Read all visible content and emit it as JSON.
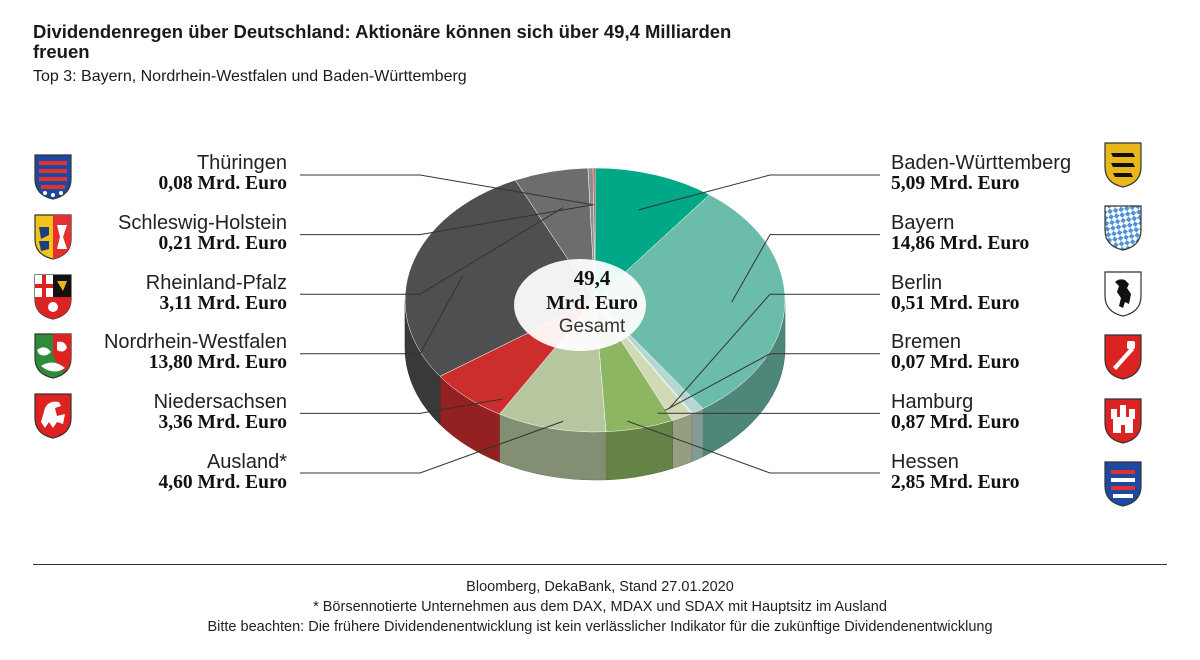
{
  "title": "Dividendenregen über Deutschland: Aktionäre können sich über 49,4 Milliarden freuen",
  "subtitle": "Top 3: Bayern, Nordrhein-Westfalen und Baden-Württemberg",
  "center": {
    "total": "49,4",
    "unit": "Mrd. Euro",
    "label": "Gesamt"
  },
  "labels_left": [
    {
      "name": "Thüringen",
      "value": "0,08 Mrd. Euro"
    },
    {
      "name": "Schleswig-Holstein",
      "value": "0,21 Mrd. Euro"
    },
    {
      "name": "Rheinland-Pfalz",
      "value": "3,11 Mrd. Euro"
    },
    {
      "name": "Nordrhein-Westfalen",
      "value": "13,80 Mrd. Euro"
    },
    {
      "name": "Niedersachsen",
      "value": "3,36 Mrd. Euro"
    },
    {
      "name": "Ausland*",
      "value": "4,60 Mrd. Euro"
    }
  ],
  "labels_right": [
    {
      "name": "Baden-Württemberg",
      "value": "5,09 Mrd. Euro"
    },
    {
      "name": "Bayern",
      "value": "14,86 Mrd. Euro"
    },
    {
      "name": "Berlin",
      "value": "0,51 Mrd. Euro"
    },
    {
      "name": "Bremen",
      "value": "0,07 Mrd. Euro"
    },
    {
      "name": "Hamburg",
      "value": "0,87 Mrd. Euro"
    },
    {
      "name": "Hessen",
      "value": "2,85 Mrd. Euro"
    }
  ],
  "chart_data": {
    "type": "pie",
    "title": "Dividendenregen über Deutschland: Aktionäre können sich über 49,4 Milliarden freuen",
    "unit": "Mrd. Euro",
    "total": 49.4,
    "slices": [
      {
        "label": "Baden-Württemberg",
        "value": 5.09,
        "color": "#00a887"
      },
      {
        "label": "Bayern",
        "value": 14.86,
        "color": "#6cbcaa"
      },
      {
        "label": "Berlin",
        "value": 0.51,
        "color": "#b6d7cf"
      },
      {
        "label": "Bremen",
        "value": 0.07,
        "color": "#cfe1d9"
      },
      {
        "label": "Hamburg",
        "value": 0.87,
        "color": "#d0dbb5"
      },
      {
        "label": "Hessen",
        "value": 2.85,
        "color": "#8db663"
      },
      {
        "label": "Ausland*",
        "value": 4.6,
        "color": "#b6c69e"
      },
      {
        "label": "Niedersachsen",
        "value": 3.36,
        "color": "#cc2e2e"
      },
      {
        "label": "Nordrhein-Westfalen",
        "value": 13.8,
        "color": "#4f4f4f"
      },
      {
        "label": "Rheinland-Pfalz",
        "value": 3.11,
        "color": "#6d6d6d"
      },
      {
        "label": "Schleswig-Holstein",
        "value": 0.21,
        "color": "#8e8e8e"
      },
      {
        "label": "Thüringen",
        "value": 0.08,
        "color": "#d23434"
      }
    ]
  },
  "footer": {
    "source": "Bloomberg, DekaBank, Stand 27.01.2020",
    "note": "* Börsennotierte Unternehmen aus dem DAX, MDAX und SDAX mit Hauptsitz im Ausland",
    "disclaimer": "Bitte beachten: Die frühere Dividendenentwicklung ist kein verlässlicher Indikator für die zukünftige Dividendenentwicklung"
  },
  "crests": [
    "thueringen-crest-icon",
    "schleswig-holstein-crest-icon",
    "rheinland-pfalz-crest-icon",
    "nordrhein-westfalen-crest-icon",
    "niedersachsen-crest-icon",
    "baden-wuerttemberg-crest-icon",
    "bayern-crest-icon",
    "berlin-crest-icon",
    "bremen-crest-icon",
    "hamburg-crest-icon",
    "hessen-crest-icon"
  ]
}
